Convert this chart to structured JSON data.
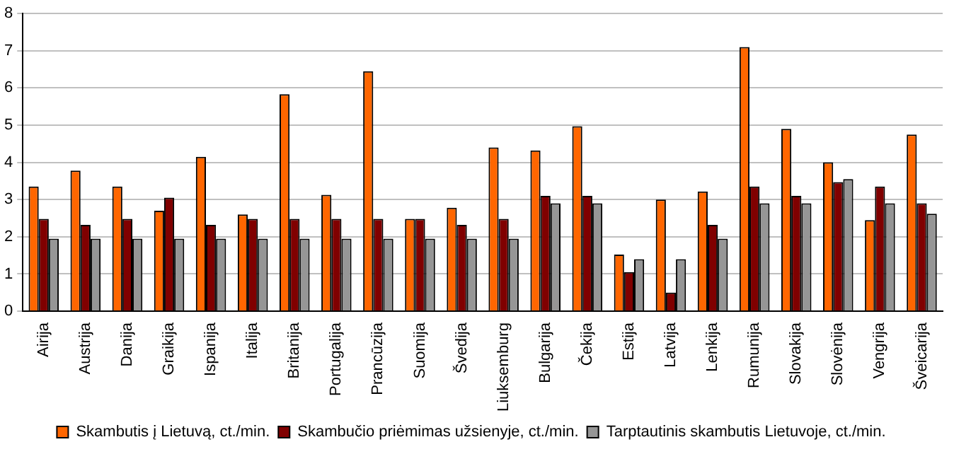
{
  "chart_data": {
    "type": "bar",
    "categories": [
      "Airija",
      "Austrija",
      "Danija",
      "Graikija",
      "Ispanija",
      "Italija",
      "Britanija",
      "Portugalija",
      "Prancūzija",
      "Suomija",
      "Švedija",
      "Liuksemburg",
      "Bulgarija",
      "Čekija",
      "Estija",
      "Latvija",
      "Lenkija",
      "Rumunija",
      "Slovakija",
      "Slovėnija",
      "Vengrija",
      "Šveicarija"
    ],
    "series": [
      {
        "name": "Skambutis į Lietuvą, ct./min.",
        "color": "#ff6600",
        "values": [
          3.35,
          3.78,
          3.35,
          2.7,
          4.15,
          2.6,
          5.83,
          3.13,
          6.45,
          2.48,
          2.78,
          4.4,
          4.32,
          4.97,
          1.52,
          3.0,
          3.22,
          7.1,
          4.9,
          4.0,
          2.45,
          4.75
        ]
      },
      {
        "name": "Skambučio priėmimas užsienyje, ct./min.",
        "color": "#800000",
        "values": [
          2.48,
          2.32,
          2.48,
          3.05,
          2.32,
          2.48,
          2.48,
          2.48,
          2.48,
          2.48,
          2.32,
          2.48,
          3.1,
          3.1,
          1.05,
          0.5,
          2.32,
          3.35,
          3.1,
          3.47,
          3.35,
          2.9
        ]
      },
      {
        "name": "Tarptautinis skambutis Lietuvoje, ct./min.",
        "color": "#969696",
        "values": [
          1.95,
          1.95,
          1.95,
          1.95,
          1.95,
          1.95,
          1.95,
          1.95,
          1.95,
          1.95,
          1.95,
          1.95,
          2.9,
          2.9,
          1.4,
          1.4,
          1.95,
          2.9,
          2.9,
          3.55,
          2.9,
          2.62
        ]
      }
    ],
    "ylim": [
      0,
      8
    ],
    "yticks": [
      0,
      1,
      2,
      3,
      4,
      5,
      6,
      7,
      8
    ],
    "grid": "y",
    "legend": "bottom"
  }
}
